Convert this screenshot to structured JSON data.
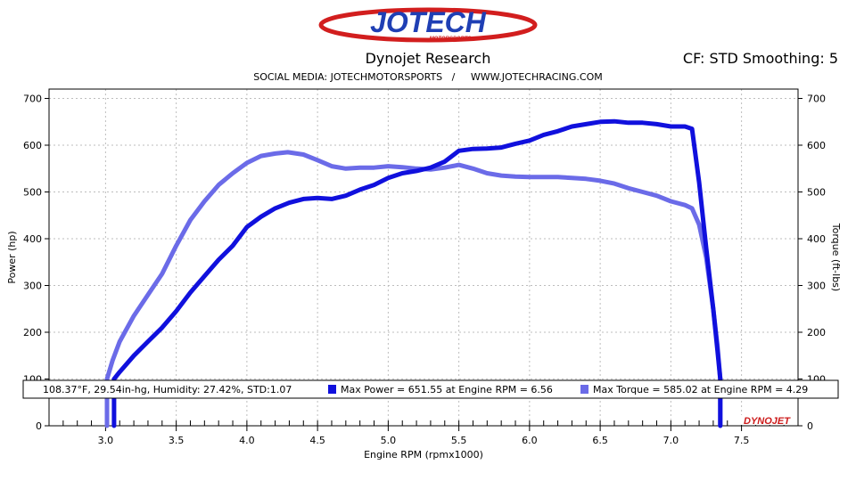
{
  "header": {
    "brand_main": "JOTECH",
    "brand_sub": "MOTORSPORTS",
    "title": "Dynojet Research",
    "cf_info": "CF: STD Smoothing: 5",
    "social": "SOCIAL MEDIA: JOTECHMOTORSPORTS   /     WWW.JOTECHRACING.COM"
  },
  "info_bar": {
    "conditions": "108.37°F, 29.54in-hg, Humidity: 27.42%, STD:1.07",
    "max_power": "Max Power = 651.55 at Engine RPM = 6.56",
    "max_torque": "Max Torque = 585.02 at Engine RPM = 4.29"
  },
  "footer_brand": "DYNOJET",
  "colors": {
    "power": "#1010dd",
    "torque": "#6b6be8"
  },
  "chart_data": {
    "type": "line",
    "xlabel": "Engine RPM (rpmx1000)",
    "ylabel": "Power (hp)",
    "y2label": "Torque (ft-lbs)",
    "xlim": [
      2.6,
      7.9
    ],
    "ylim": [
      0,
      720
    ],
    "y2lim": [
      0,
      720
    ],
    "x_ticks": [
      "3.0",
      "3.5",
      "4.0",
      "4.5",
      "5.0",
      "5.5",
      "6.0",
      "6.5",
      "7.0",
      "7.5"
    ],
    "y_ticks": [
      "0",
      "100",
      "200",
      "300",
      "400",
      "500",
      "600",
      "700"
    ],
    "grid": true,
    "series": [
      {
        "name": "Power",
        "axis": "left",
        "x": [
          3.06,
          3.1,
          3.2,
          3.3,
          3.4,
          3.5,
          3.6,
          3.7,
          3.8,
          3.9,
          4.0,
          4.1,
          4.2,
          4.3,
          4.4,
          4.5,
          4.6,
          4.7,
          4.8,
          4.9,
          5.0,
          5.1,
          5.2,
          5.3,
          5.4,
          5.5,
          5.6,
          5.7,
          5.8,
          5.9,
          6.0,
          6.1,
          6.2,
          6.3,
          6.4,
          6.5,
          6.6,
          6.7,
          6.8,
          6.9,
          7.0,
          7.1,
          7.15,
          7.2,
          7.25,
          7.3,
          7.33,
          7.35
        ],
        "y": [
          100,
          115,
          150,
          180,
          210,
          245,
          285,
          320,
          355,
          385,
          425,
          447,
          465,
          477,
          485,
          487,
          485,
          492,
          505,
          515,
          530,
          540,
          545,
          552,
          565,
          588,
          592,
          593,
          595,
          603,
          610,
          622,
          630,
          640,
          645,
          650,
          651,
          648,
          648,
          645,
          640,
          640,
          635,
          520,
          380,
          250,
          160,
          100
        ]
      },
      {
        "name": "Torque",
        "axis": "right",
        "x": [
          3.01,
          3.05,
          3.1,
          3.2,
          3.3,
          3.4,
          3.5,
          3.6,
          3.7,
          3.8,
          3.9,
          4.0,
          4.1,
          4.2,
          4.29,
          4.4,
          4.5,
          4.6,
          4.7,
          4.8,
          4.9,
          5.0,
          5.1,
          5.2,
          5.3,
          5.4,
          5.5,
          5.6,
          5.7,
          5.8,
          5.9,
          6.0,
          6.1,
          6.2,
          6.3,
          6.4,
          6.5,
          6.6,
          6.7,
          6.8,
          6.9,
          7.0,
          7.1,
          7.15,
          7.2,
          7.25,
          7.3,
          7.33,
          7.35
        ],
        "y": [
          100,
          140,
          180,
          235,
          280,
          325,
          385,
          440,
          480,
          515,
          540,
          562,
          577,
          582,
          585,
          580,
          568,
          555,
          550,
          552,
          552,
          555,
          553,
          550,
          548,
          552,
          558,
          550,
          540,
          535,
          533,
          532,
          532,
          532,
          530,
          528,
          524,
          518,
          508,
          500,
          492,
          480,
          472,
          465,
          430,
          360,
          250,
          170,
          100
        ]
      }
    ]
  }
}
